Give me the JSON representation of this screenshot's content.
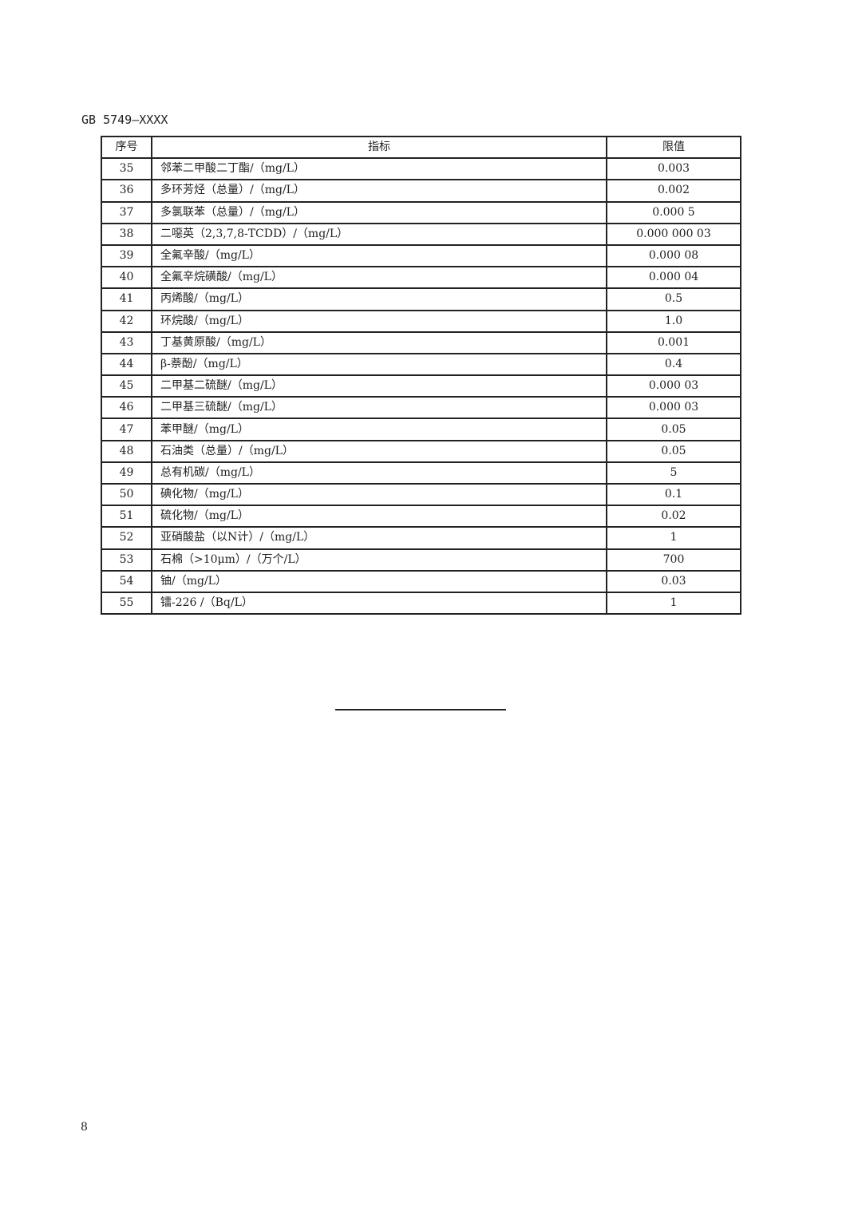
{
  "header": {
    "standard_code": "GB 5749—XXXX"
  },
  "table": {
    "columns": [
      "序号",
      "指标",
      "限值"
    ],
    "rows": [
      [
        "35",
        "邻苯二甲酸二丁酯/（mg/L）",
        "0.003"
      ],
      [
        "36",
        "多环芳烃（总量）/（mg/L）",
        "0.002"
      ],
      [
        "37",
        "多氯联苯（总量）/（mg/L）",
        "0.000 5"
      ],
      [
        "38",
        "二噁英（2,3,7,8-TCDD）/（mg/L）",
        "0.000 000 03"
      ],
      [
        "39",
        "全氟辛酸/（mg/L）",
        "0.000 08"
      ],
      [
        "40",
        "全氟辛烷磺酸/（mg/L）",
        "0.000 04"
      ],
      [
        "41",
        "丙烯酸/（mg/L）",
        "0.5"
      ],
      [
        "42",
        "环烷酸/（mg/L）",
        "1.0"
      ],
      [
        "43",
        "丁基黄原酸/（mg/L）",
        "0.001"
      ],
      [
        "44",
        "β-萘酚/（mg/L）",
        "0.4"
      ],
      [
        "45",
        "二甲基二硫醚/（mg/L）",
        "0.000 03"
      ],
      [
        "46",
        "二甲基三硫醚/（mg/L）",
        "0.000 03"
      ],
      [
        "47",
        "苯甲醚/（mg/L）",
        "0.05"
      ],
      [
        "48",
        "石油类（总量）/（mg/L）",
        "0.05"
      ],
      [
        "49",
        "总有机碳/（mg/L）",
        "5"
      ],
      [
        "50",
        "碘化物/（mg/L）",
        "0.1"
      ],
      [
        "51",
        "硫化物/（mg/L）",
        "0.02"
      ],
      [
        "52",
        "亚硝酸盐（以N计）/（mg/L）",
        "1"
      ],
      [
        "53",
        "石棉（>10μm）/（万个/L）",
        "700"
      ],
      [
        "54",
        "铀/（mg/L）",
        "0.03"
      ],
      [
        "55",
        "镭-226 /（Bq/L）",
        "1"
      ]
    ]
  },
  "footer": {
    "page_number": "8"
  }
}
